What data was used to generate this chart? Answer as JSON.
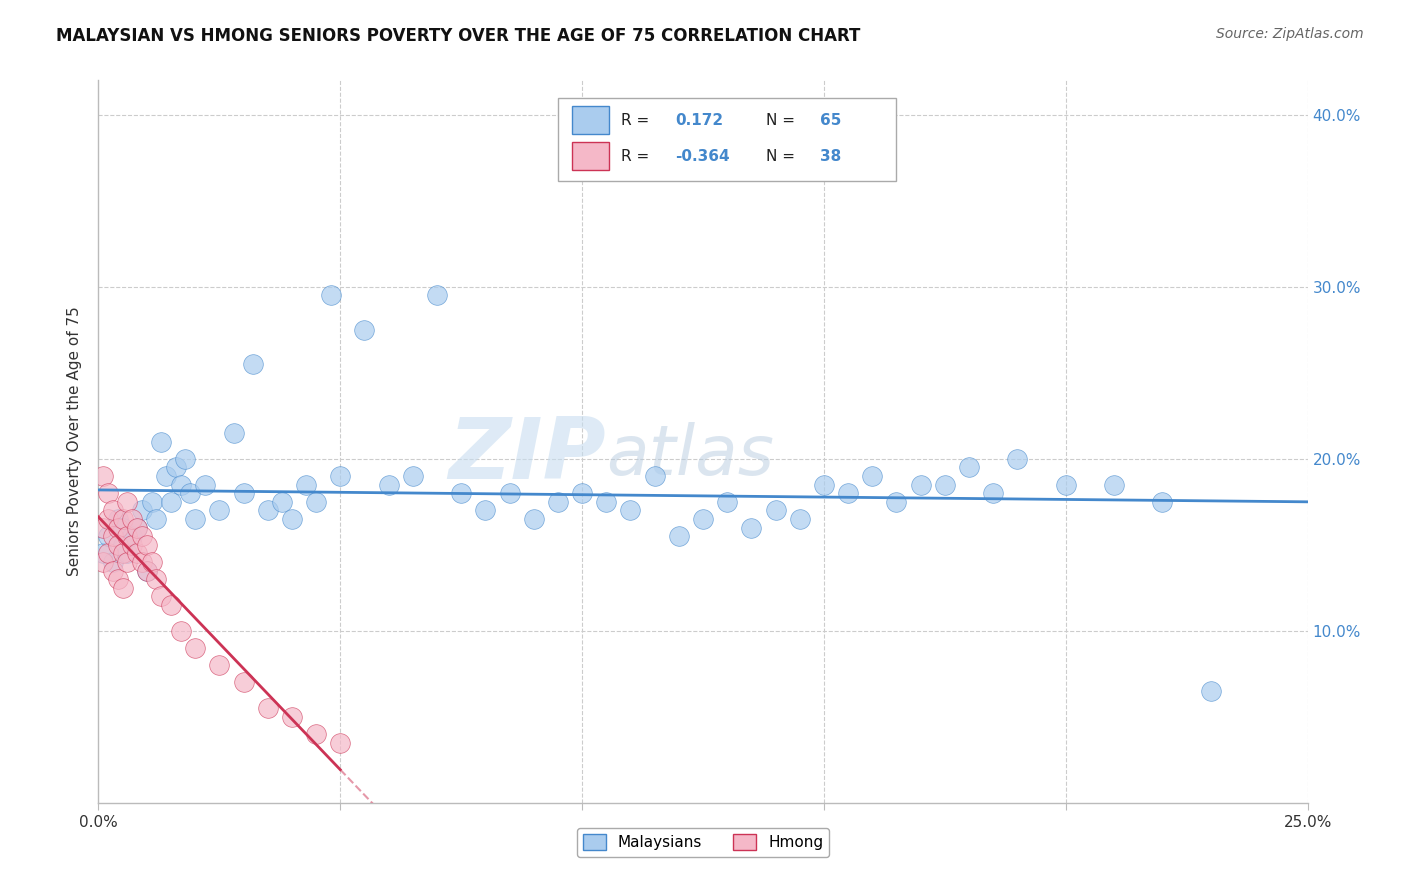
{
  "title": "MALAYSIAN VS HMONG SENIORS POVERTY OVER THE AGE OF 75 CORRELATION CHART",
  "source": "Source: ZipAtlas.com",
  "ylabel": "Seniors Poverty Over the Age of 75",
  "xlim": [
    0.0,
    0.25
  ],
  "ylim": [
    0.0,
    0.42
  ],
  "R_malaysian": 0.172,
  "N_malaysian": 65,
  "R_hmong": -0.364,
  "N_hmong": 38,
  "malaysian_color": "#aaccee",
  "hmong_color": "#f5b8c8",
  "malaysian_line_color": "#4488cc",
  "hmong_line_color": "#cc3355",
  "background_color": "#ffffff",
  "grid_color": "#cccccc",
  "watermark_zip": "ZIP",
  "watermark_atlas": "atlas",
  "malaysian_x": [
    0.001,
    0.002,
    0.003,
    0.004,
    0.005,
    0.005,
    0.006,
    0.007,
    0.008,
    0.009,
    0.01,
    0.011,
    0.012,
    0.013,
    0.014,
    0.015,
    0.016,
    0.017,
    0.018,
    0.019,
    0.02,
    0.022,
    0.025,
    0.028,
    0.03,
    0.032,
    0.035,
    0.038,
    0.04,
    0.043,
    0.045,
    0.048,
    0.05,
    0.055,
    0.06,
    0.065,
    0.07,
    0.075,
    0.08,
    0.085,
    0.09,
    0.095,
    0.1,
    0.105,
    0.11,
    0.115,
    0.12,
    0.125,
    0.13,
    0.135,
    0.14,
    0.145,
    0.15,
    0.155,
    0.16,
    0.165,
    0.17,
    0.175,
    0.18,
    0.185,
    0.19,
    0.2,
    0.21,
    0.22,
    0.23
  ],
  "malaysian_y": [
    0.145,
    0.155,
    0.14,
    0.165,
    0.15,
    0.16,
    0.145,
    0.155,
    0.16,
    0.17,
    0.135,
    0.175,
    0.165,
    0.21,
    0.19,
    0.175,
    0.195,
    0.185,
    0.2,
    0.18,
    0.165,
    0.185,
    0.17,
    0.215,
    0.18,
    0.255,
    0.17,
    0.175,
    0.165,
    0.185,
    0.175,
    0.295,
    0.19,
    0.275,
    0.185,
    0.19,
    0.295,
    0.18,
    0.17,
    0.18,
    0.165,
    0.175,
    0.18,
    0.175,
    0.17,
    0.19,
    0.155,
    0.165,
    0.175,
    0.16,
    0.17,
    0.165,
    0.185,
    0.18,
    0.19,
    0.175,
    0.185,
    0.185,
    0.195,
    0.18,
    0.2,
    0.185,
    0.185,
    0.175,
    0.065
  ],
  "hmong_x": [
    0.001,
    0.001,
    0.001,
    0.002,
    0.002,
    0.002,
    0.003,
    0.003,
    0.003,
    0.004,
    0.004,
    0.004,
    0.005,
    0.005,
    0.005,
    0.006,
    0.006,
    0.006,
    0.007,
    0.007,
    0.008,
    0.008,
    0.009,
    0.009,
    0.01,
    0.01,
    0.011,
    0.012,
    0.013,
    0.015,
    0.017,
    0.02,
    0.025,
    0.03,
    0.035,
    0.04,
    0.045,
    0.05
  ],
  "hmong_y": [
    0.19,
    0.16,
    0.14,
    0.18,
    0.165,
    0.145,
    0.17,
    0.155,
    0.135,
    0.16,
    0.15,
    0.13,
    0.165,
    0.145,
    0.125,
    0.155,
    0.14,
    0.175,
    0.15,
    0.165,
    0.145,
    0.16,
    0.14,
    0.155,
    0.135,
    0.15,
    0.14,
    0.13,
    0.12,
    0.115,
    0.1,
    0.09,
    0.08,
    0.07,
    0.055,
    0.05,
    0.04,
    0.035
  ]
}
